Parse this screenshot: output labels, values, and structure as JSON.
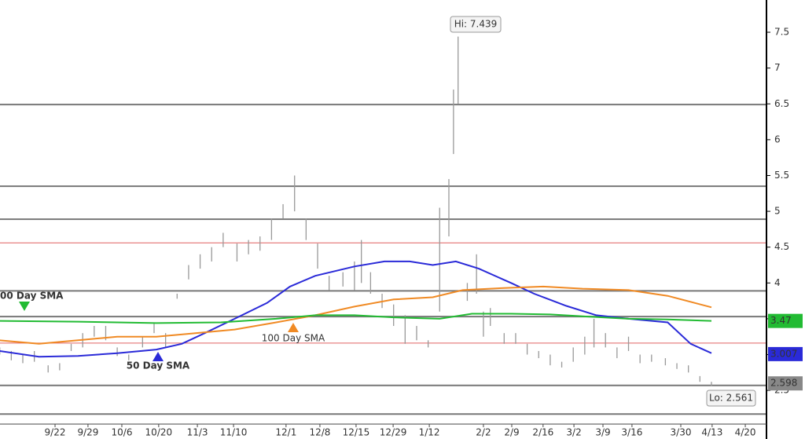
{
  "chart_data": {
    "type": "ohlc",
    "xlim": [
      -2.39,
      30.89
    ],
    "ylim": [
      2.03,
      7.95
    ],
    "xticks": [
      {
        "value": 0,
        "label": "9/22"
      },
      {
        "value": 1.43,
        "label": "9/29"
      },
      {
        "value": 2.9,
        "label": "10/6"
      },
      {
        "value": 4.5,
        "label": "10/20"
      },
      {
        "value": 6.18,
        "label": "11/3"
      },
      {
        "value": 7.75,
        "label": "11/10"
      },
      {
        "value": 10.03,
        "label": "12/1"
      },
      {
        "value": 11.5,
        "label": "12/8"
      },
      {
        "value": 13.07,
        "label": "12/15"
      },
      {
        "value": 14.68,
        "label": "12/29"
      },
      {
        "value": 16.25,
        "label": "1/12"
      },
      {
        "value": 18.6,
        "label": "2/2"
      },
      {
        "value": 19.83,
        "label": "2/9"
      },
      {
        "value": 21.19,
        "label": "2/16"
      },
      {
        "value": 22.53,
        "label": "3/2"
      },
      {
        "value": 23.79,
        "label": "3/9"
      },
      {
        "value": 25.05,
        "label": "3/16"
      },
      {
        "value": 27.17,
        "label": "3/30"
      },
      {
        "value": 28.53,
        "label": "4/13"
      },
      {
        "value": 29.97,
        "label": "4/20"
      }
    ],
    "yticks": [
      2.5,
      3,
      3.5,
      4,
      4.5,
      5,
      5.5,
      6,
      6.5,
      7,
      7.5
    ],
    "bars": {
      "color": "#999999",
      "x": [
        -2.4,
        -1.9,
        -1.4,
        -0.9,
        -0.3,
        0.2,
        0.7,
        1.2,
        1.7,
        2.2,
        2.7,
        3.2,
        3.8,
        4.3,
        4.8,
        5.3,
        5.8,
        6.3,
        6.8,
        7.3,
        7.9,
        8.4,
        8.9,
        9.4,
        9.9,
        10.4,
        10.9,
        11.4,
        11.9,
        12.5,
        13.0,
        13.3,
        13.7,
        14.2,
        14.7,
        15.2,
        15.7,
        16.2,
        16.7,
        17.1,
        17.3,
        17.5,
        17.9,
        18.3,
        18.6,
        18.9,
        19.5,
        20.0,
        20.5,
        21.0,
        21.5,
        22.0,
        22.5,
        23.0,
        23.4,
        23.9,
        24.4,
        24.9,
        25.4,
        25.9,
        26.5,
        27.0,
        27.5,
        28.0,
        28.5
      ],
      "high": [
        3.1,
        3.05,
        3.0,
        3.05,
        2.85,
        2.88,
        3.15,
        3.3,
        3.4,
        3.4,
        3.1,
        3.0,
        3.25,
        3.45,
        3.3,
        3.85,
        4.25,
        4.4,
        4.5,
        4.7,
        4.55,
        4.6,
        4.65,
        4.9,
        5.1,
        5.5,
        4.9,
        4.55,
        4.1,
        4.15,
        4.3,
        4.6,
        4.15,
        3.85,
        3.7,
        3.55,
        3.4,
        3.2,
        5.05,
        5.45,
        6.7,
        7.439,
        4.0,
        4.4,
        3.6,
        3.65,
        3.3,
        3.3,
        3.15,
        3.05,
        3.0,
        2.9,
        3.1,
        3.25,
        3.5,
        3.3,
        3.1,
        3.25,
        3.0,
        3.0,
        2.95,
        2.88,
        2.85,
        2.7,
        2.62
      ],
      "low": [
        3.0,
        2.92,
        2.88,
        2.9,
        2.75,
        2.78,
        3.05,
        3.1,
        3.25,
        3.2,
        2.98,
        2.92,
        3.1,
        3.3,
        3.1,
        3.78,
        4.05,
        4.2,
        4.3,
        4.5,
        4.3,
        4.4,
        4.45,
        4.6,
        4.9,
        5.0,
        4.6,
        4.2,
        3.9,
        3.95,
        3.9,
        4.0,
        3.85,
        3.65,
        3.4,
        3.15,
        3.2,
        3.1,
        3.6,
        4.65,
        5.8,
        6.5,
        3.75,
        3.85,
        3.25,
        3.4,
        3.15,
        3.15,
        3.0,
        2.95,
        2.85,
        2.82,
        2.9,
        3.0,
        3.1,
        3.1,
        2.95,
        3.05,
        2.88,
        2.9,
        2.85,
        2.8,
        2.75,
        2.62,
        2.561
      ],
      "last_value": 2.598
    },
    "series": [
      {
        "name": "50 Day SMA",
        "color": "#2a2ad8",
        "last_value": 3.007,
        "x": [
          -2.4,
          -0.7,
          1.0,
          2.7,
          4.4,
          5.5,
          6.5,
          7.8,
          9.2,
          10.2,
          11.3,
          13.0,
          14.3,
          15.4,
          16.4,
          17.4,
          18.4,
          19.8,
          20.8,
          22.2,
          23.5,
          24.9,
          26.6,
          27.6,
          28.5
        ],
        "values": [
          3.05,
          2.97,
          2.98,
          3.02,
          3.07,
          3.15,
          3.3,
          3.5,
          3.72,
          3.95,
          4.1,
          4.23,
          4.3,
          4.3,
          4.25,
          4.3,
          4.2,
          4.0,
          3.85,
          3.68,
          3.55,
          3.5,
          3.45,
          3.15,
          3.02
        ]
      },
      {
        "name": "100 Day SMA",
        "color": "#f08a24",
        "x": [
          -2.4,
          -0.7,
          1.0,
          2.7,
          4.4,
          6.1,
          7.8,
          9.6,
          11.3,
          13.0,
          14.7,
          16.4,
          17.7,
          19.5,
          21.2,
          22.9,
          24.9,
          26.6,
          28.5
        ],
        "values": [
          3.2,
          3.15,
          3.2,
          3.25,
          3.25,
          3.3,
          3.35,
          3.45,
          3.55,
          3.67,
          3.77,
          3.8,
          3.9,
          3.93,
          3.95,
          3.92,
          3.9,
          3.82,
          3.66
        ]
      },
      {
        "name": "00 Day SMA",
        "color": "#22bb33",
        "last_value": 3.47,
        "x": [
          -2.4,
          1.0,
          4.4,
          7.2,
          9.6,
          11.3,
          13.0,
          14.7,
          16.7,
          18.1,
          19.8,
          21.5,
          23.2,
          24.9,
          26.6,
          28.5
        ],
        "values": [
          3.47,
          3.46,
          3.44,
          3.45,
          3.5,
          3.55,
          3.55,
          3.52,
          3.5,
          3.57,
          3.57,
          3.56,
          3.53,
          3.5,
          3.49,
          3.47
        ]
      }
    ],
    "levels": [
      {
        "value": 6.49,
        "color": "#777777"
      },
      {
        "value": 5.35,
        "color": "#777777"
      },
      {
        "value": 4.89,
        "color": "#777777"
      },
      {
        "value": 4.56,
        "color": "#e06060"
      },
      {
        "value": 3.89,
        "color": "#777777"
      },
      {
        "value": 3.53,
        "color": "#777777"
      },
      {
        "value": 3.16,
        "color": "#e06060"
      },
      {
        "value": 2.57,
        "color": "#777777"
      },
      {
        "value": 2.17,
        "color": "#777777"
      }
    ],
    "hi_label": "Hi: 7.439",
    "lo_label": "Lo: 2.561"
  }
}
